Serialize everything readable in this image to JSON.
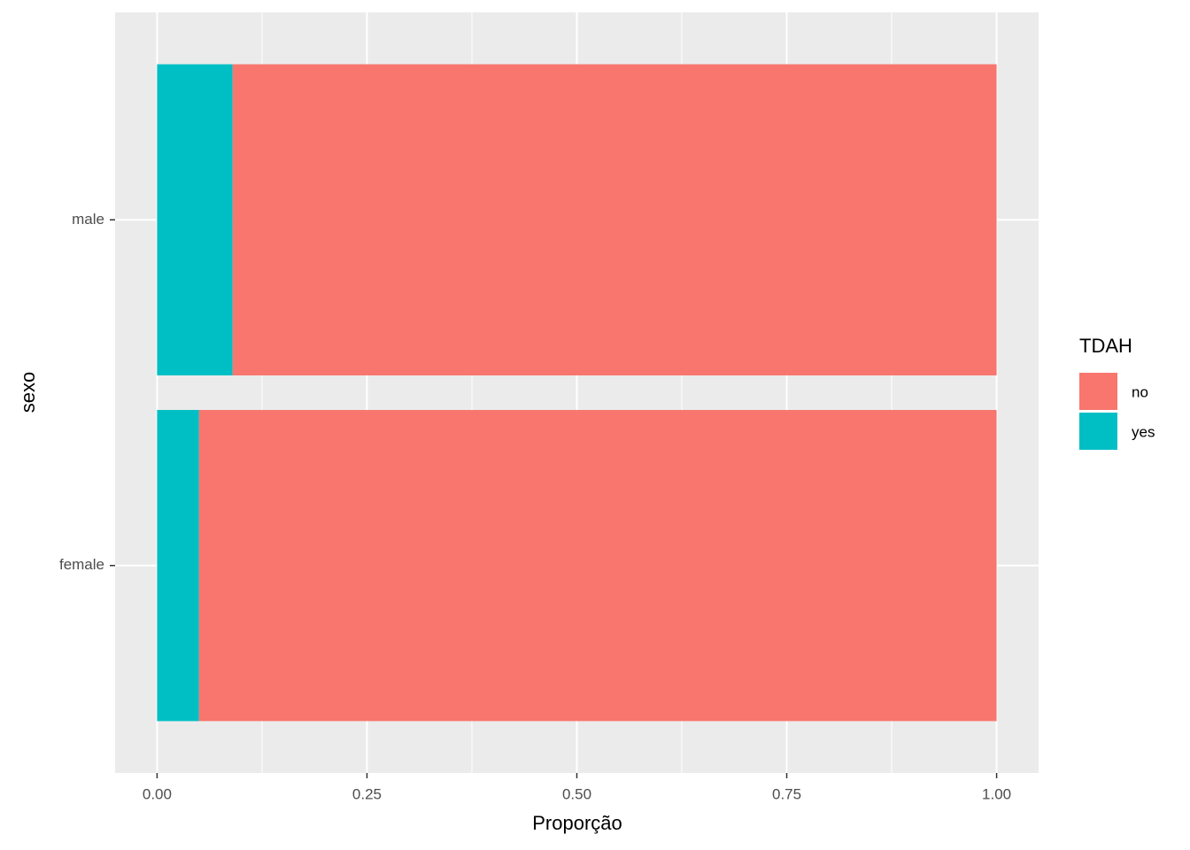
{
  "chart_data": {
    "type": "bar",
    "orientation": "horizontal",
    "stacked": true,
    "x_label": "Proporção",
    "y_label": "sexo",
    "categories": [
      "female",
      "male"
    ],
    "series": [
      {
        "name": "no",
        "color": "#F8766D",
        "values": [
          0.95,
          0.91
        ]
      },
      {
        "name": "yes",
        "color": "#00BFC4",
        "values": [
          0.05,
          0.09
        ]
      }
    ],
    "xlim": [
      -0.05,
      1.05
    ],
    "xticks": [
      {
        "value": 0,
        "label": "0.00"
      },
      0.25,
      {
        "value": 0.5,
        "label": "0.50"
      },
      0.75,
      {
        "value": 1,
        "label": "1.00"
      }
    ],
    "grid": true,
    "legend_title": "TDAH",
    "legend_position": "right"
  }
}
